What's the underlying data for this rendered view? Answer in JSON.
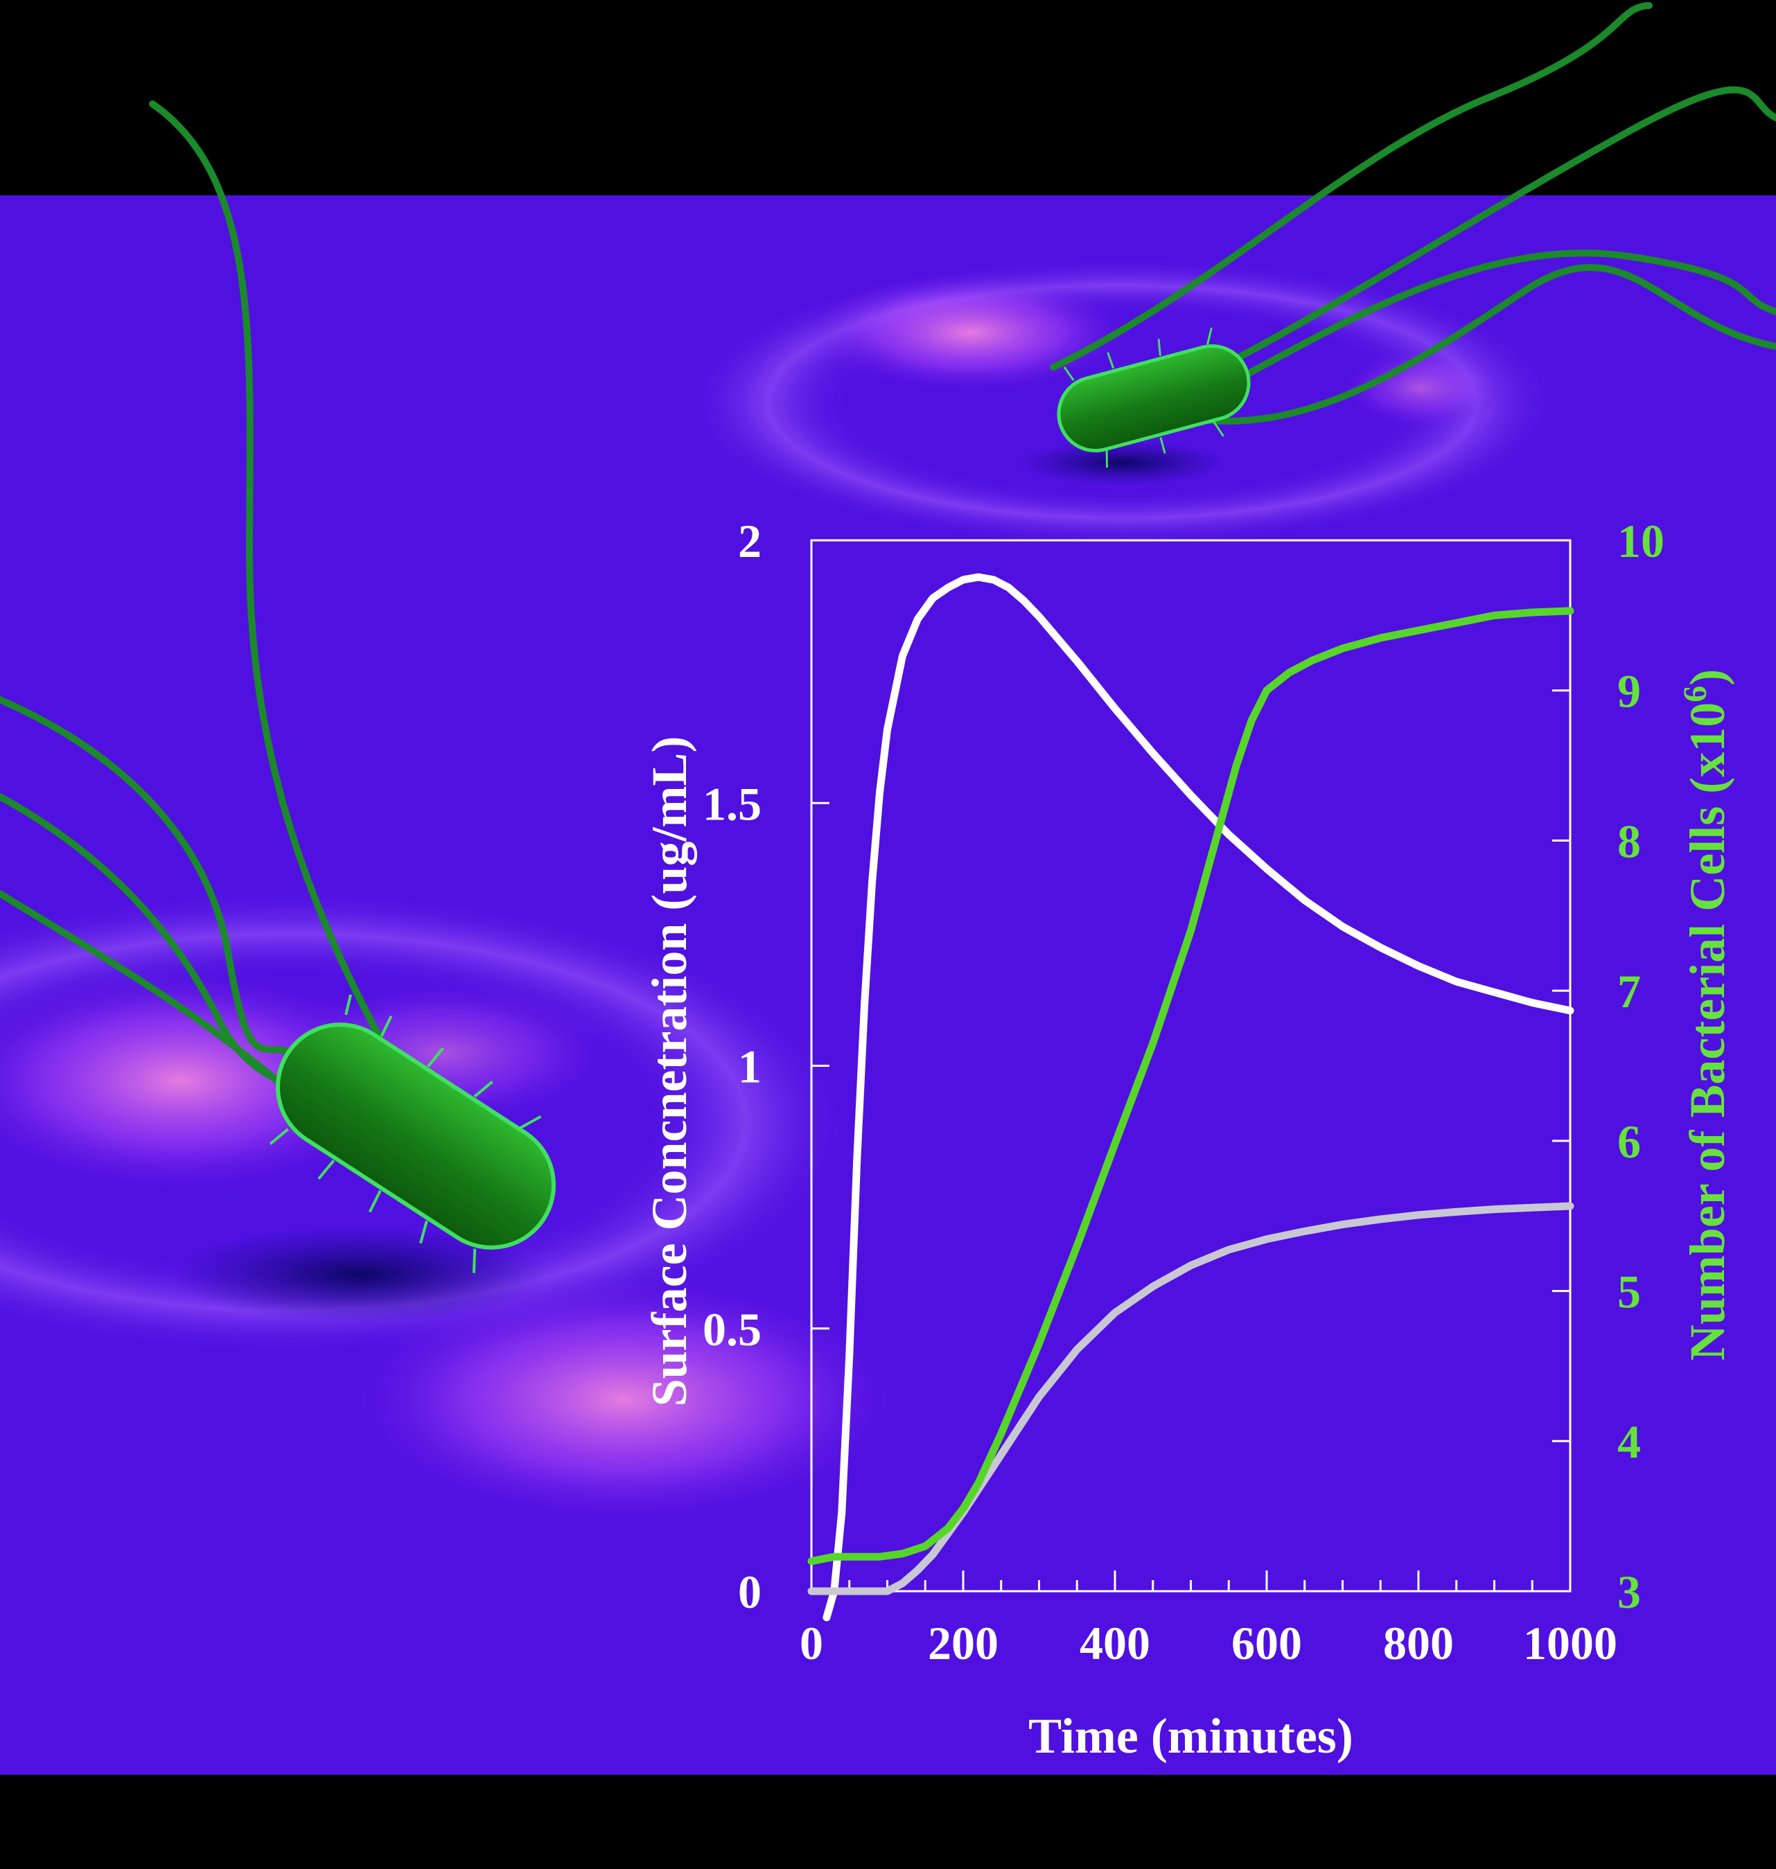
{
  "colors": {
    "background_band": "#000000",
    "surface": "#5010e0",
    "highlight": "#ff7ad9",
    "bacterium": "#1f9a1f",
    "left_axis": "#ffffff",
    "right_axis": "#66e33a",
    "curve_surface": "#ffffff",
    "curve_secondary": "#c8c8d2",
    "curve_cells": "#57d62a"
  },
  "chart_data": {
    "type": "line",
    "xlabel": "Time (minutes)",
    "ylabel": "Surface Concnetration (ug/mL)",
    "y2label_main": "Number of Bacterial Cells (x10",
    "y2label_sup": "6",
    "y2label_end": ")",
    "xlim": [
      0,
      1000
    ],
    "ylim": [
      0,
      2
    ],
    "y2lim": [
      3,
      10
    ],
    "x_ticks": [
      "0",
      "200",
      "400",
      "600",
      "800",
      "1000"
    ],
    "y_ticks": [
      "0",
      "0.5",
      "1",
      "1.5",
      "2"
    ],
    "y2_ticks": [
      "3",
      "4",
      "5",
      "6",
      "7",
      "8",
      "9",
      "10"
    ],
    "grid": false,
    "legend": "none",
    "series": [
      {
        "axis": "left",
        "color": "#ffffff",
        "x": [
          20,
          30,
          40,
          50,
          60,
          70,
          80,
          90,
          100,
          120,
          140,
          160,
          180,
          200,
          220,
          240,
          260,
          280,
          300,
          350,
          400,
          450,
          500,
          550,
          600,
          650,
          700,
          750,
          800,
          850,
          900,
          950,
          1000
        ],
        "y": [
          -0.05,
          0.0,
          0.15,
          0.45,
          0.82,
          1.12,
          1.35,
          1.52,
          1.64,
          1.78,
          1.85,
          1.89,
          1.91,
          1.925,
          1.93,
          1.925,
          1.91,
          1.885,
          1.855,
          1.77,
          1.68,
          1.595,
          1.515,
          1.44,
          1.375,
          1.315,
          1.265,
          1.225,
          1.19,
          1.16,
          1.14,
          1.12,
          1.105
        ]
      },
      {
        "axis": "left",
        "color": "#c8c8d2",
        "x": [
          0,
          50,
          80,
          100,
          120,
          140,
          160,
          180,
          200,
          250,
          300,
          350,
          400,
          450,
          500,
          550,
          600,
          650,
          700,
          750,
          800,
          850,
          900,
          950,
          1000
        ],
        "y": [
          0.0,
          0.0,
          0.0,
          0.0,
          0.015,
          0.04,
          0.07,
          0.11,
          0.15,
          0.26,
          0.37,
          0.46,
          0.53,
          0.58,
          0.62,
          0.65,
          0.67,
          0.685,
          0.698,
          0.708,
          0.716,
          0.722,
          0.727,
          0.73,
          0.733
        ]
      },
      {
        "axis": "right",
        "color": "#57d62a",
        "x": [
          0,
          30,
          60,
          90,
          120,
          150,
          180,
          200,
          220,
          250,
          300,
          350,
          400,
          450,
          500,
          530,
          560,
          580,
          600,
          630,
          660,
          700,
          750,
          800,
          850,
          900,
          950,
          1000
        ],
        "y": [
          3.2,
          3.23,
          3.23,
          3.23,
          3.25,
          3.3,
          3.42,
          3.55,
          3.72,
          4.05,
          4.65,
          5.3,
          5.98,
          6.65,
          7.4,
          7.95,
          8.5,
          8.8,
          9.0,
          9.12,
          9.2,
          9.28,
          9.35,
          9.4,
          9.45,
          9.5,
          9.52,
          9.53
        ]
      }
    ]
  }
}
